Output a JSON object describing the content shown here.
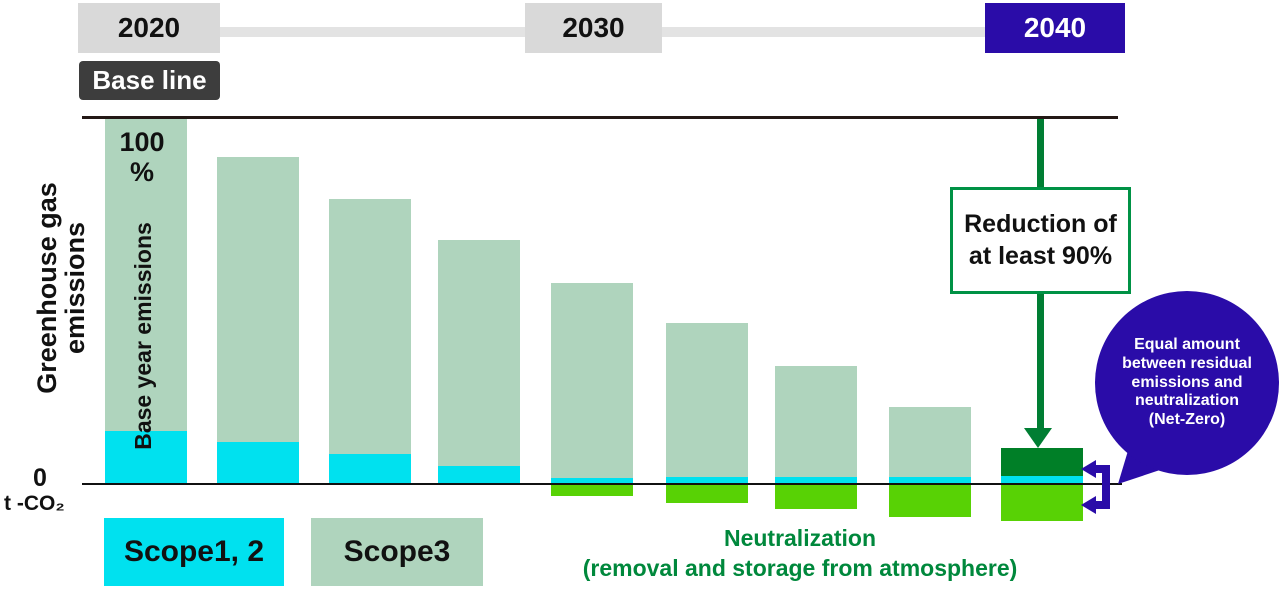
{
  "colors": {
    "scope12": "#00e1ef",
    "scope3": "#afd4bd",
    "neutralization": "#58d205",
    "residual": "#007f27",
    "arrow_green": "#007e33",
    "box_border_green": "#009245",
    "legend_green": "#00883c",
    "purple": "#2a0ca8",
    "timeline_gray": "#d9d9d9",
    "baseline_tag_bg": "#3d3d3d",
    "line_black": "#231815"
  },
  "timeline": {
    "years": [
      {
        "label": "2020"
      },
      {
        "label": "2030"
      },
      {
        "label": "2040"
      }
    ],
    "baseline_tag": "Base line"
  },
  "y_axis": {
    "label_line1": "Greenhouse gas",
    "label_line2": "emissions",
    "top_value": "100",
    "top_unit": "%",
    "zero": "0",
    "unit": "t -CO₂",
    "bar1_label": "Base year emissions"
  },
  "annotations": {
    "reduction_line1": "Reduction of",
    "reduction_line2": "at least 90%",
    "bubble_lines": [
      "Equal amount",
      "between residual",
      "emissions and",
      "neutralization",
      "(Net-Zero)"
    ]
  },
  "legend": {
    "scope12": "Scope1, 2",
    "scope3": "Scope3",
    "neutralization_line1": "Neutralization",
    "neutralization_line2": "(removal and storage from atmosphere)"
  },
  "chart_data": {
    "type": "bar",
    "stacked": true,
    "unit": "percent of base year emissions",
    "ylabel": "Greenhouse gas emissions",
    "baseline_pct": 100,
    "ylim_pct": [
      -12,
      100
    ],
    "gridlines": false,
    "x_note": "9 unlabeled yearly steps from 2020 (base line, 100%) to 2040 (net-zero)",
    "series": [
      {
        "name": "Scope3",
        "values": [
          85.6,
          77.8,
          69.5,
          61.6,
          53.1,
          41.9,
          30.2,
          19.0,
          0
        ]
      },
      {
        "name": "Scope1, 2",
        "values": [
          14.4,
          11.4,
          8.2,
          4.9,
          1.7,
          2.0,
          2.0,
          2.0,
          2.2
        ]
      },
      {
        "name": "Residual emissions (dark green, 2040)",
        "values": [
          0,
          0,
          0,
          0,
          0,
          0,
          0,
          0,
          7.6
        ]
      },
      {
        "name": "Neutralization (removal and storage from atmosphere)",
        "values": [
          0,
          0,
          0,
          0,
          -3.3,
          -5.2,
          -6.8,
          -9.0,
          -10.1
        ]
      }
    ],
    "annotations": [
      "Reduction of at least 90%",
      "Equal amount between residual emissions and neutralization (Net-Zero)"
    ]
  }
}
